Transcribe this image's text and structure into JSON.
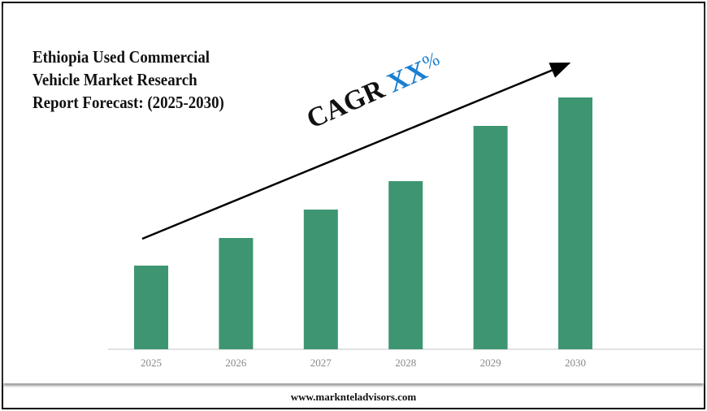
{
  "title_lines": [
    "Ethiopia Used Commercial",
    "Vehicle Market Research",
    "Report Forecast: (2025-2030)"
  ],
  "cagr": {
    "label": "CAGR",
    "value": "XX",
    "unit": "%"
  },
  "footer": {
    "website": "www.marknteladvisors.com"
  },
  "colors": {
    "bar": "#3d9671",
    "cagr_value": "#1a7fd0",
    "axis_label": "#888888"
  },
  "chart_data": {
    "type": "bar",
    "categories": [
      "2025",
      "2026",
      "2027",
      "2028",
      "2029",
      "2030"
    ],
    "values": [
      103,
      137,
      172,
      207,
      275,
      310
    ],
    "value_note_visible": false,
    "xlabel": "",
    "ylabel": "",
    "y_axis_shown": false,
    "grid": false,
    "annotation": "trend arrow with CAGR label"
  }
}
